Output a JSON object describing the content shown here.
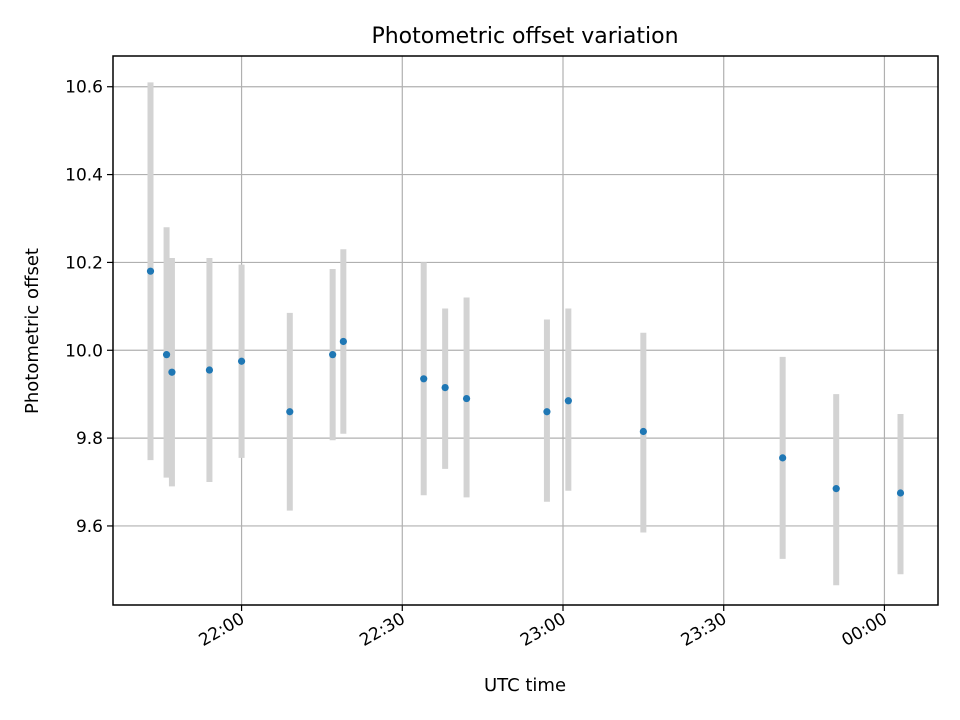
{
  "chart_data": {
    "type": "scatter",
    "title": "Photometric offset variation",
    "xlabel": "UTC time",
    "ylabel": "Photometric offset",
    "x_tick_labels": [
      "22:00",
      "22:30",
      "23:00",
      "23:30",
      "00:00"
    ],
    "x_ticks": [
      "22:00",
      "22:30",
      "23:00",
      "23:30",
      "24:00"
    ],
    "xlim": [
      "21:36",
      "24:10"
    ],
    "y_ticks": [
      9.6,
      9.8,
      10.0,
      10.2,
      10.4,
      10.6
    ],
    "ylim": [
      9.42,
      10.67
    ],
    "grid": true,
    "colors": {
      "point": "#1f77b4",
      "errorbar": "#d3d3d3"
    },
    "series": [
      {
        "points": [
          {
            "x": "21:43",
            "y": 10.18,
            "yerr_low": 9.75,
            "yerr_high": 10.61
          },
          {
            "x": "21:46",
            "y": 9.99,
            "yerr_low": 9.71,
            "yerr_high": 10.28
          },
          {
            "x": "21:47",
            "y": 9.95,
            "yerr_low": 9.69,
            "yerr_high": 10.21
          },
          {
            "x": "21:54",
            "y": 9.955,
            "yerr_low": 9.7,
            "yerr_high": 10.21
          },
          {
            "x": "22:00",
            "y": 9.975,
            "yerr_low": 9.755,
            "yerr_high": 10.195
          },
          {
            "x": "22:09",
            "y": 9.86,
            "yerr_low": 9.635,
            "yerr_high": 10.085
          },
          {
            "x": "22:17",
            "y": 9.99,
            "yerr_low": 9.795,
            "yerr_high": 10.185
          },
          {
            "x": "22:19",
            "y": 10.02,
            "yerr_low": 9.81,
            "yerr_high": 10.23
          },
          {
            "x": "22:34",
            "y": 9.935,
            "yerr_low": 9.67,
            "yerr_high": 10.2
          },
          {
            "x": "22:38",
            "y": 9.915,
            "yerr_low": 9.73,
            "yerr_high": 10.095
          },
          {
            "x": "22:42",
            "y": 9.89,
            "yerr_low": 9.665,
            "yerr_high": 10.12
          },
          {
            "x": "22:57",
            "y": 9.86,
            "yerr_low": 9.655,
            "yerr_high": 10.07
          },
          {
            "x": "23:01",
            "y": 9.885,
            "yerr_low": 9.68,
            "yerr_high": 10.095
          },
          {
            "x": "23:15",
            "y": 9.815,
            "yerr_low": 9.585,
            "yerr_high": 10.04
          },
          {
            "x": "23:41",
            "y": 9.755,
            "yerr_low": 9.525,
            "yerr_high": 9.985
          },
          {
            "x": "23:51",
            "y": 9.685,
            "yerr_low": 9.465,
            "yerr_high": 9.9
          },
          {
            "x": "24:03",
            "y": 9.675,
            "yerr_low": 9.49,
            "yerr_high": 9.855
          }
        ]
      }
    ]
  }
}
